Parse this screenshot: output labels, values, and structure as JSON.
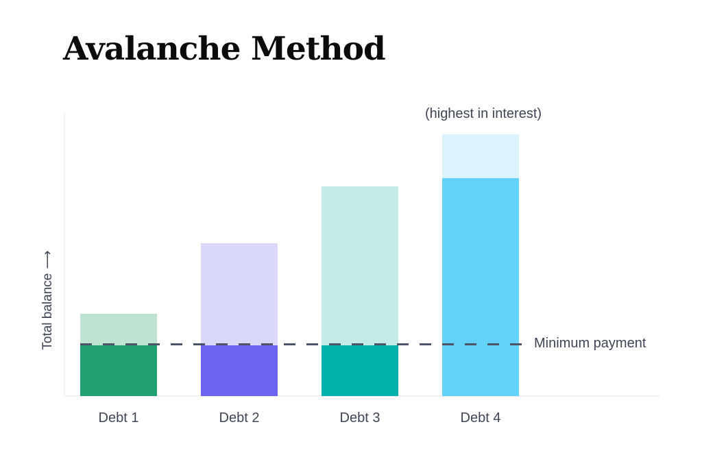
{
  "chart_data": {
    "type": "bar",
    "title": "Avalanche Method",
    "categories": [
      "Debt 1",
      "Debt 2",
      "Debt 3",
      "Debt 4"
    ],
    "total_balance": [
      29,
      54,
      74,
      92.5
    ],
    "payment_fill": [
      18,
      18,
      18,
      77
    ],
    "minimum_payment_level": 18,
    "ylim": [
      0,
      100
    ],
    "ylabel": "Total balance",
    "ylabel_arrow": "⟶",
    "xlabel": "",
    "annotation": "(highest in interest)",
    "annotation_target": "Debt 4",
    "line_label": "Minimum payment",
    "grid": false,
    "legend": "none",
    "colors": {
      "background": "#ffffff",
      "title": "#0b0b0b",
      "text": "#3e4455",
      "dashed_line": "#4d5468",
      "axis": "#f0f0f1",
      "bars": [
        {
          "light": "#bfe3d1",
          "dark": "#22a06f"
        },
        {
          "light": "#d9d8f8",
          "dark": "#6c63f0"
        },
        {
          "light": "#c3ebe8",
          "dark": "#00b1ab"
        },
        {
          "light": "#dcf3fd",
          "dark": "#62d2f9"
        }
      ]
    }
  }
}
